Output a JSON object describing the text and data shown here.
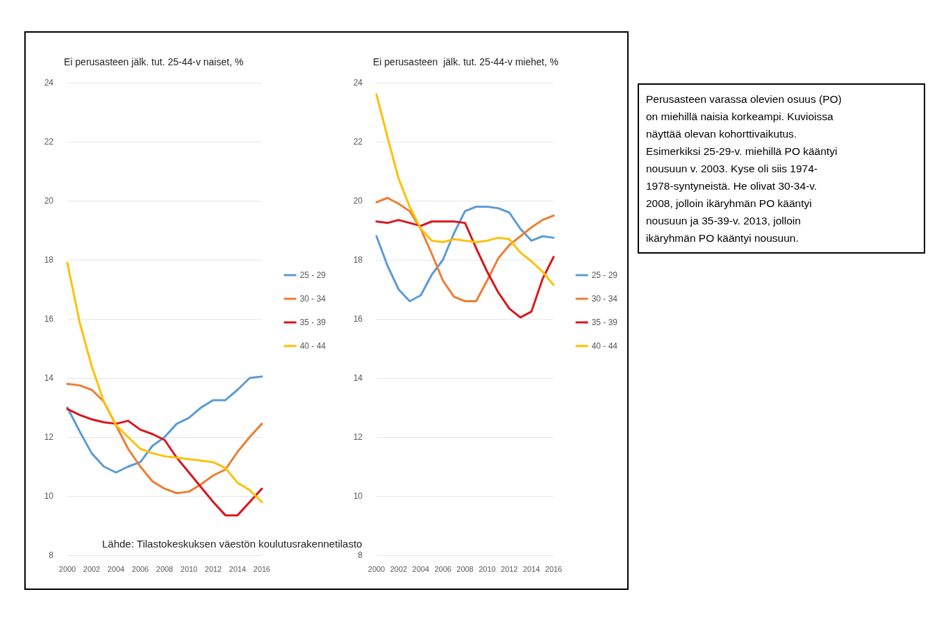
{
  "chart_data": [
    {
      "type": "line",
      "title": "Ei perusasteen jälk. tut. 25-44-v naiset, %",
      "categories": [
        "2000",
        null,
        "2002",
        null,
        "2004",
        null,
        "2006",
        null,
        "2008",
        null,
        "2010",
        null,
        "2012",
        null,
        "2014",
        null,
        "2016"
      ],
      "series": [
        {
          "name": "25 - 29",
          "color": "#5b9bd5",
          "values": [
            13.0,
            12.2,
            11.45,
            11.0,
            10.8,
            11.0,
            11.15,
            11.7,
            12.0,
            12.45,
            12.65,
            13.0,
            13.25,
            13.25,
            13.6,
            14.0,
            14.05
          ]
        },
        {
          "name": "30 - 34",
          "color": "#ed7d31",
          "values": [
            13.8,
            13.75,
            13.6,
            13.2,
            12.4,
            11.6,
            11.0,
            10.5,
            10.25,
            10.1,
            10.15,
            10.4,
            10.7,
            10.9,
            11.5,
            12.0,
            12.45
          ]
        },
        {
          "name": "35 - 39",
          "color": "#d9151b",
          "values": [
            12.95,
            12.75,
            12.6,
            12.5,
            12.45,
            12.55,
            12.25,
            12.1,
            11.9,
            11.3,
            10.8,
            10.3,
            9.8,
            9.35,
            9.35,
            9.8,
            10.25
          ]
        },
        {
          "name": "40 - 44",
          "color": "#ffc000",
          "values": [
            17.9,
            15.9,
            14.4,
            13.2,
            12.4,
            12.0,
            11.6,
            11.45,
            11.35,
            11.3,
            11.25,
            11.2,
            11.15,
            10.95,
            10.45,
            10.2,
            9.8
          ]
        }
      ],
      "ylim": [
        8,
        24
      ],
      "yticks": [
        8,
        10,
        12,
        14,
        16,
        18,
        20,
        22,
        24
      ],
      "grid": "y",
      "legend": "right",
      "marker": "none",
      "line_style": "solid",
      "annotations": [
        "Lähde: Tilastokeskuksen väestön koulutusrakennetilasto"
      ]
    },
    {
      "type": "line",
      "title": "Ei perusasteen  jälk. tut. 25-44-v miehet, %",
      "categories": [
        "2000",
        null,
        "2002",
        null,
        "2004",
        null,
        "2006",
        null,
        "2008",
        null,
        "2010",
        null,
        "2012",
        null,
        "2014",
        null,
        "2016"
      ],
      "series": [
        {
          "name": "25 - 29",
          "color": "#5b9bd5",
          "values": [
            18.8,
            17.8,
            17.0,
            16.6,
            16.8,
            17.5,
            18.0,
            18.9,
            19.65,
            19.8,
            19.8,
            19.75,
            19.6,
            19.05,
            18.65,
            18.8,
            18.75
          ]
        },
        {
          "name": "30 - 34",
          "color": "#ed7d31",
          "values": [
            19.95,
            20.1,
            19.9,
            19.65,
            19.05,
            18.2,
            17.3,
            16.75,
            16.6,
            16.6,
            17.3,
            18.05,
            18.5,
            18.8,
            19.1,
            19.35,
            19.5
          ]
        },
        {
          "name": "35 - 39",
          "color": "#d9151b",
          "values": [
            19.3,
            19.25,
            19.35,
            19.25,
            19.15,
            19.3,
            19.3,
            19.3,
            19.25,
            18.4,
            17.6,
            16.9,
            16.35,
            16.05,
            16.25,
            17.35,
            18.1
          ]
        },
        {
          "name": "40 - 44",
          "color": "#ffc000",
          "values": [
            23.6,
            22.15,
            20.75,
            19.8,
            19.05,
            18.65,
            18.6,
            18.7,
            18.65,
            18.6,
            18.65,
            18.75,
            18.7,
            18.25,
            17.95,
            17.6,
            17.15
          ]
        }
      ],
      "ylim": [
        8,
        24
      ],
      "yticks": [
        8,
        10,
        12,
        14,
        16,
        18,
        20,
        22,
        24
      ],
      "grid": "y",
      "legend": "right",
      "marker": "none",
      "line_style": "solid"
    },
    {
      "type": "other",
      "annotations": [
        "Perusasteen varassa olevien osuus (PO)",
        "on miehillä naisia korkeampi. Kuvioissa",
        "näyttää olevan kohorttivaikutus.",
        "Esimerkiksi 25-29-v. miehillä PO kääntyi",
        "nousuun v. 2003. Kyse oli siis 1974-",
        "1978-syntyneistä. He olivat 30-34-v.",
        "2008, jolloin ikäryhmän PO kääntyi",
        "nousuun ja 35-39-v. 2013, jolloin",
        "ikäryhmän PO kääntyi nousuun."
      ]
    }
  ]
}
